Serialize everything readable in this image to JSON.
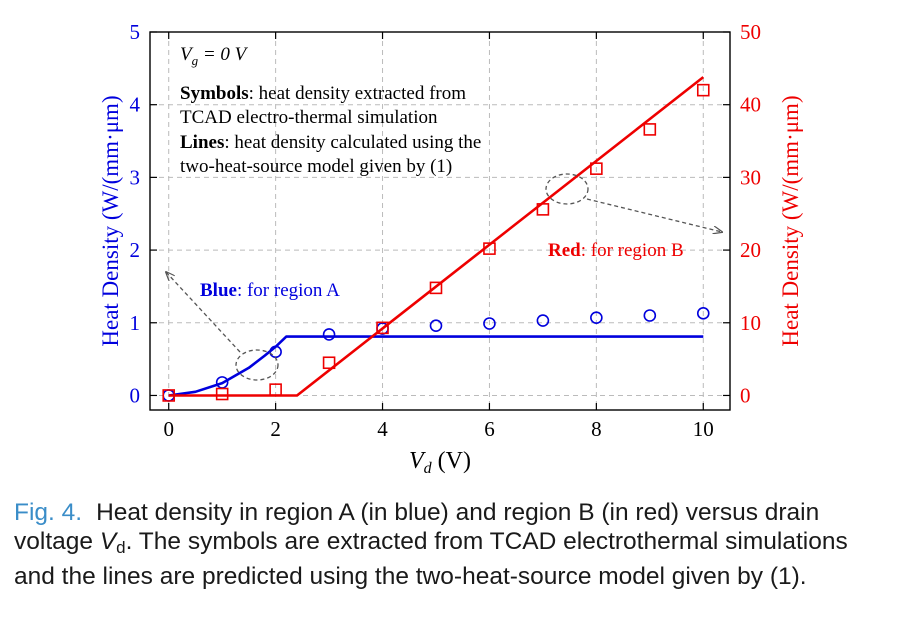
{
  "chart_data": {
    "type": "line",
    "title": "",
    "annotation_top": {
      "vg_label": "V",
      "vg_sub": "g",
      "vg_rest": " = 0 V",
      "symbols_bold": "Symbols",
      "symbols_text_1": ": heat density extracted from",
      "symbols_text_2": "TCAD electro-thermal simulation",
      "lines_bold": "Lines",
      "lines_text_1": ": heat density calculated using the",
      "lines_text_2": "two-heat-source model given by (1)"
    },
    "annotation_blue": {
      "bold": "Blue",
      "text": ": for region A"
    },
    "annotation_red": {
      "bold": "Red",
      "text": ": for region B"
    },
    "xlabel_main": "V",
    "xlabel_sub": "d",
    "xlabel_unit": " (V)",
    "ylabel_left": "Heat Density (W/(mm·μm)",
    "ylabel_right": "Heat Density (W/(mm·μm)",
    "xlim": [
      -0.35,
      10.5
    ],
    "ylim_left": [
      -0.2,
      5
    ],
    "ylim_right": [
      -2,
      50
    ],
    "xticks": [
      0,
      2,
      4,
      6,
      8,
      10
    ],
    "yticks_left": [
      0,
      1,
      2,
      3,
      4,
      5
    ],
    "yticks_right": [
      0,
      10,
      20,
      30,
      40,
      50
    ],
    "grid": true,
    "colors": {
      "blue": "#0000dd",
      "red": "#ee0000",
      "grid": "#bbbbbb",
      "axis": "#000000",
      "annot": "#555555"
    },
    "series": [
      {
        "name": "region A symbols",
        "axis": "left",
        "kind": "circle",
        "x": [
          0,
          1,
          2,
          3,
          4,
          5,
          6,
          7,
          8,
          9,
          10
        ],
        "y": [
          0.0,
          0.18,
          0.6,
          0.84,
          0.92,
          0.96,
          0.99,
          1.03,
          1.07,
          1.1,
          1.13
        ]
      },
      {
        "name": "region A model",
        "axis": "left",
        "kind": "line",
        "x": [
          0,
          0.5,
          1.0,
          1.5,
          1.8,
          2.0,
          2.2,
          4,
          6,
          8,
          10
        ],
        "y": [
          0.0,
          0.05,
          0.17,
          0.38,
          0.55,
          0.67,
          0.81,
          0.81,
          0.81,
          0.81,
          0.81
        ]
      },
      {
        "name": "region B symbols",
        "axis": "right",
        "kind": "square",
        "x": [
          0,
          1,
          2,
          3,
          4,
          5,
          6,
          7,
          8,
          9,
          10
        ],
        "y": [
          0,
          0.2,
          0.8,
          4.5,
          9.3,
          14.8,
          20.2,
          25.6,
          31.2,
          36.6,
          42
        ]
      },
      {
        "name": "region B model",
        "axis": "right",
        "kind": "line",
        "x": [
          0,
          2.4,
          10
        ],
        "y": [
          0,
          0,
          43.8
        ]
      }
    ]
  },
  "caption": {
    "label": "Fig. 4.",
    "text_before_sub": "Heat density in region A (in blue) and region B (in red) versus drain voltage ",
    "var_main": "V",
    "var_sub": "d",
    "text_after_sub": ". The symbols are extracted from TCAD electrothermal simulations and the lines are predicted using the two-heat-source model given by (1)."
  }
}
